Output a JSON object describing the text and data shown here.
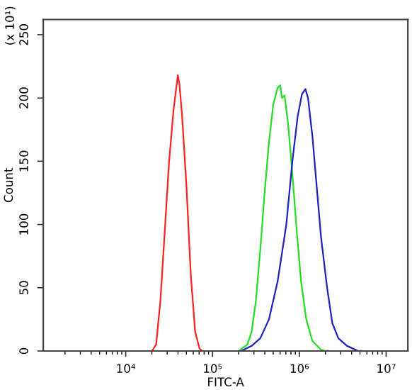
{
  "chart_data": {
    "type": "line",
    "xlabel": "FITC-A",
    "ylabel": "Count",
    "annotations": [
      "(x 10¹)"
    ],
    "log": "x",
    "grid": false,
    "legend": false,
    "marker": "none",
    "line_style": "solid",
    "xlim": [
      1122,
      17800000
    ],
    "ylim": [
      0,
      262
    ],
    "xticks": [
      {
        "value": 10000,
        "label": "10⁴"
      },
      {
        "value": 100000,
        "label": "10⁵"
      },
      {
        "value": 1000000,
        "label": "10⁶"
      },
      {
        "value": 10000000,
        "label": "10⁷"
      }
    ],
    "yticks": [
      0,
      50,
      100,
      150,
      200,
      250
    ],
    "series": [
      {
        "color": "#ff2020",
        "x": [
          20000,
          22400,
          25100,
          28200,
          31600,
          35500,
          39800,
          41700,
          44700,
          50100,
          56200,
          63100,
          70800,
          75900
        ],
        "values": [
          0,
          5,
          40,
          95,
          150,
          190,
          218,
          210,
          185,
          130,
          60,
          15,
          2,
          0
        ]
      },
      {
        "color": "#22dd22",
        "x": [
          199500,
          251200,
          281800,
          316200,
          354800,
          398100,
          446700,
          501200,
          562300,
          602600,
          631000,
          676100,
          741300,
          831800,
          933300,
          1047000,
          1202000,
          1413000,
          1778000,
          1995000
        ],
        "values": [
          0,
          5,
          15,
          40,
          80,
          125,
          165,
          195,
          208,
          210,
          200,
          202,
          180,
          140,
          95,
          55,
          25,
          8,
          1,
          0
        ]
      },
      {
        "color": "#2020c0",
        "x": [
          213800,
          281800,
          354800,
          446700,
          562300,
          707900,
          831800,
          955000,
          1072000,
          1175000,
          1259000,
          1413000,
          1585000,
          1778000,
          2089000,
          2399000,
          2818000,
          3548000,
          4786000
        ],
        "values": [
          0,
          4,
          10,
          25,
          55,
          100,
          150,
          185,
          203,
          207,
          200,
          170,
          130,
          90,
          50,
          22,
          10,
          4,
          0
        ]
      }
    ]
  }
}
